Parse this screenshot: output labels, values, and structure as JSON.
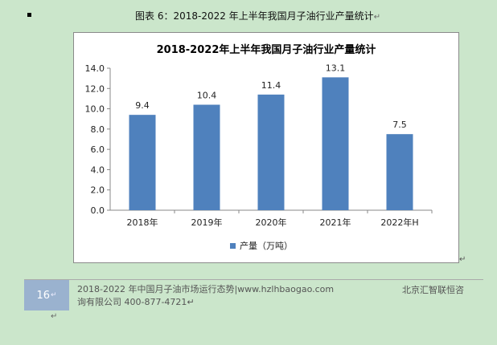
{
  "caption": {
    "text": "图表  6：2018-2022 年上半年我国月子油行业产量统计",
    "return_mark": "↵"
  },
  "chart_data": {
    "type": "bar",
    "title": "2018-2022年上半年我国月子油行业产量统计",
    "categories": [
      "2018年",
      "2019年",
      "2020年",
      "2021年",
      "2022年H"
    ],
    "series": [
      {
        "name": "产量（万吨）",
        "values": [
          9.4,
          10.4,
          11.4,
          13.1,
          7.5
        ]
      }
    ],
    "value_labels": [
      "9.4",
      "10.4",
      "11.4",
      "13.1",
      "7.5"
    ],
    "yticks": [
      "0.0",
      "2.0",
      "4.0",
      "6.0",
      "8.0",
      "10.0",
      "12.0",
      "14.0"
    ],
    "ylim": [
      0,
      14
    ],
    "ystep": 2,
    "bar_color": "#4f81bd",
    "legend_position": "bottom"
  },
  "after_chart_mark": "↵",
  "footer": {
    "page_number": "16",
    "page_return_mark": "↵",
    "line1": "2018-2022 年中国月子油市场运行态势|www.hzlhbaogao.com",
    "line2": "询有限公司  400-877-4721↵",
    "company": "北京汇智联恒咨",
    "bottom_mark": "↵"
  }
}
